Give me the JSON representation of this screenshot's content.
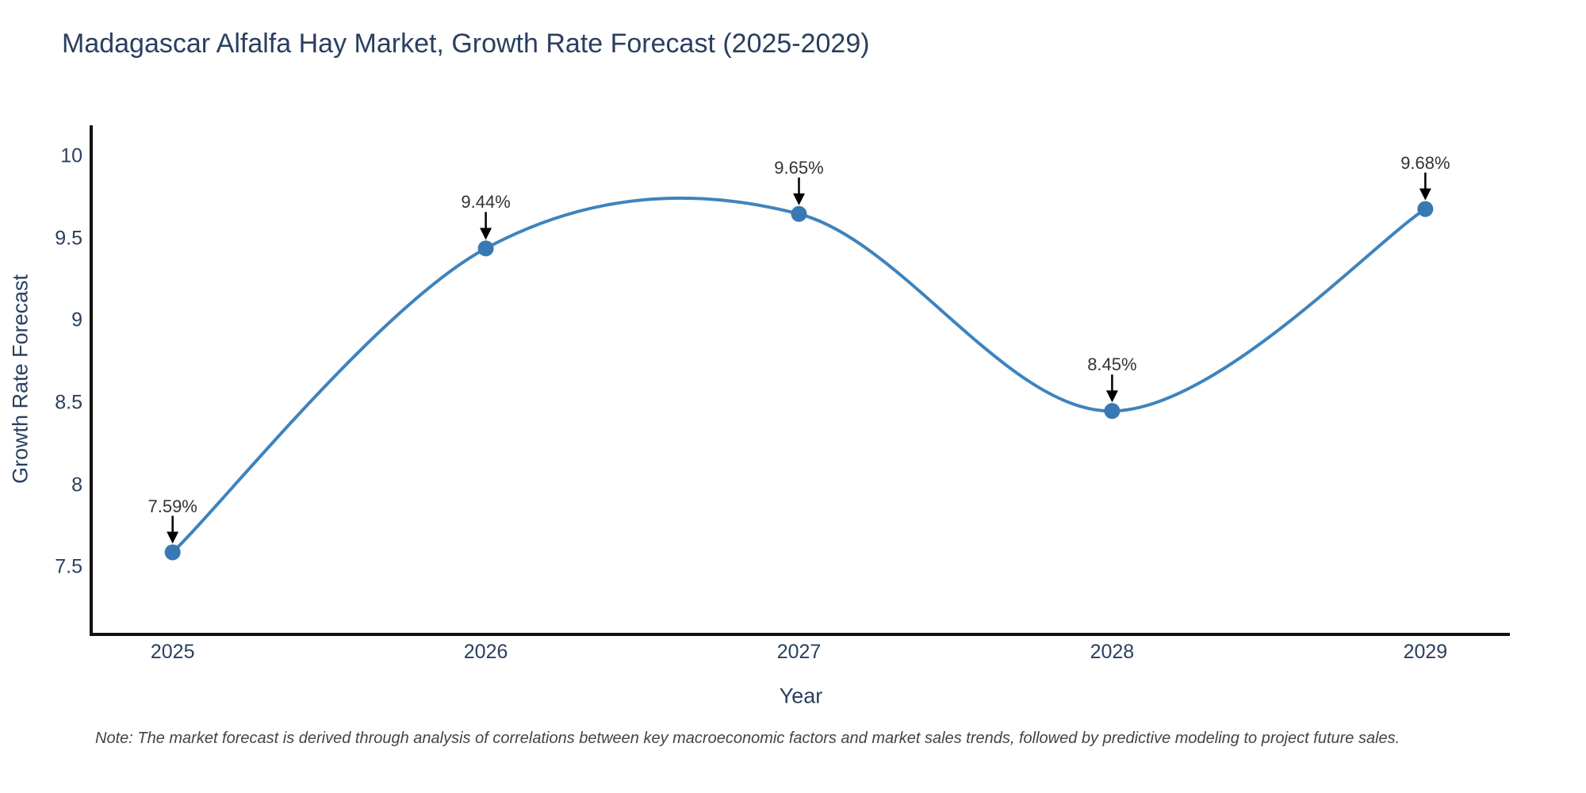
{
  "title": "Madagascar Alfalfa Hay Market, Growth Rate Forecast (2025-2029)",
  "note": "Note: The market forecast is derived through analysis of correlations between key macroeconomic factors and market sales trends, followed by predictive modeling to project future sales.",
  "x_axis": {
    "title": "Year",
    "ticks": [
      "2025",
      "2026",
      "2027",
      "2028",
      "2029"
    ]
  },
  "y_axis": {
    "title": "Growth Rate Forecast",
    "ticks": [
      "10",
      "9.5",
      "9",
      "8.5",
      "8",
      "7.5"
    ]
  },
  "colors": {
    "line": "#3e83bd",
    "marker": "#3878b3",
    "axis": "#111111",
    "arrow": "#000000",
    "text": "#2a3f5f",
    "annotation_text": "#333333",
    "note_text": "#444444",
    "background": "#ffffff"
  },
  "chart_data": {
    "type": "line",
    "title": "Madagascar Alfalfa Hay Market, Growth Rate Forecast (2025-2029)",
    "x": [
      2025,
      2026,
      2027,
      2028,
      2029
    ],
    "values": [
      7.59,
      9.44,
      9.65,
      8.45,
      9.68
    ],
    "labels": [
      "7.59%",
      "9.44%",
      "9.65%",
      "8.45%",
      "9.68%"
    ],
    "series_name": "Growth Rate Forecast",
    "xlabel": "Year",
    "ylabel": "Growth Rate Forecast",
    "xlim": [
      2024.74,
      2029.27
    ],
    "ylim": [
      7.09,
      10.19
    ],
    "y_ticks": [
      10,
      9.5,
      9,
      8.5,
      8,
      7.5
    ],
    "line_shape": "spline",
    "markers": true,
    "annotations_with_arrows": true,
    "grid": false,
    "legend": false
  }
}
